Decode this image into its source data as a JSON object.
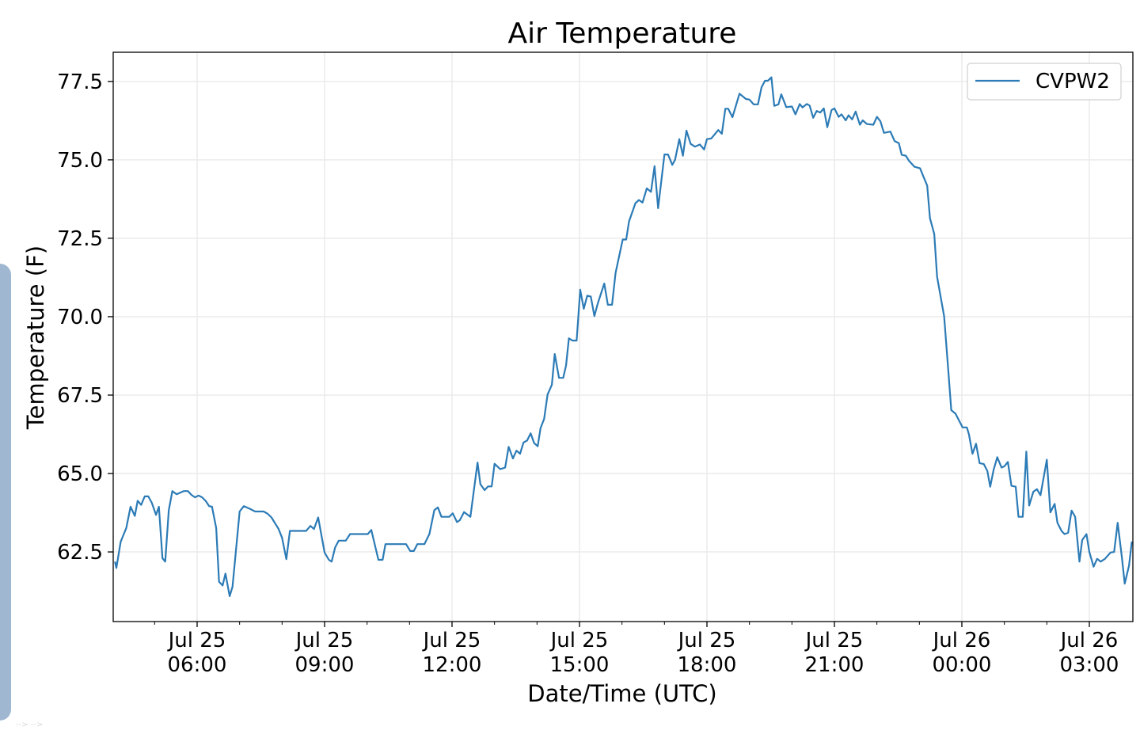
{
  "side_hint": "--> -->",
  "colors": {
    "series": "#2c7bb6",
    "grid": "#ebebeb",
    "panel": "#9fb7d1"
  },
  "chart_data": {
    "type": "line",
    "title": "Air Temperature",
    "xlabel": "Date/Time (UTC)",
    "ylabel": "Temperature (F)",
    "x_unit": "minutes after Jul 25 00:00 UTC",
    "xlim": [
      241.5,
      1681.5
    ],
    "ylim": [
      60.28,
      78.43
    ],
    "grid": true,
    "legend_position": "top-right",
    "x_ticks": [
      {
        "value": 360,
        "line1": "Jul 25",
        "line2": "06:00"
      },
      {
        "value": 540,
        "line1": "Jul 25",
        "line2": "09:00"
      },
      {
        "value": 720,
        "line1": "Jul 25",
        "line2": "12:00"
      },
      {
        "value": 900,
        "line1": "Jul 25",
        "line2": "15:00"
      },
      {
        "value": 1080,
        "line1": "Jul 25",
        "line2": "18:00"
      },
      {
        "value": 1260,
        "line1": "Jul 25",
        "line2": "21:00"
      },
      {
        "value": 1440,
        "line1": "Jul 26",
        "line2": "00:00"
      },
      {
        "value": 1620,
        "line1": "Jul 26",
        "line2": "03:00"
      }
    ],
    "x_minor_ticks": [
      300,
      420,
      480,
      600,
      660,
      780,
      840,
      960,
      1020,
      1140,
      1200,
      1320,
      1380,
      1500,
      1560
    ],
    "y_ticks": [
      {
        "value": 62.5,
        "label": "62.5"
      },
      {
        "value": 65.0,
        "label": "65.0"
      },
      {
        "value": 67.5,
        "label": "67.5"
      },
      {
        "value": 70.0,
        "label": "70.0"
      },
      {
        "value": 72.5,
        "label": "72.5"
      },
      {
        "value": 75.0,
        "label": "75.0"
      },
      {
        "value": 77.5,
        "label": "77.5"
      }
    ],
    "series": [
      {
        "name": "CVPW2",
        "x": [
          244,
          246,
          252,
          255,
          260,
          266,
          272,
          276,
          281,
          286,
          291,
          296,
          302,
          306,
          311,
          315,
          320,
          325,
          331,
          341,
          347,
          352,
          357,
          362,
          367,
          372,
          377,
          381,
          387,
          391,
          396,
          400,
          406,
          410,
          420,
          426,
          434,
          442,
          454,
          460,
          465,
          475,
          480,
          486,
          491,
          514,
          520,
          525,
          531,
          540,
          546,
          550,
          555,
          560,
          570,
          576,
          601,
          606,
          616,
          622,
          626,
          655,
          661,
          666,
          671,
          681,
          688,
          695,
          700,
          705,
          716,
          721,
          727,
          731,
          737,
          746,
          756,
          760,
          766,
          771,
          776,
          780,
          788,
          795,
          800,
          806,
          811,
          816,
          821,
          826,
          831,
          836,
          841,
          845,
          850,
          855,
          861,
          865,
          871,
          877,
          881,
          885,
          890,
          896,
          901,
          906,
          911,
          916,
          921,
          926,
          935,
          940,
          946,
          951,
          961,
          966,
          970,
          979,
          984,
          989,
          995,
          1001,
          1006,
          1011,
          1020,
          1025,
          1031,
          1035,
          1041,
          1046,
          1051,
          1057,
          1063,
          1070,
          1076,
          1080,
          1086,
          1096,
          1101,
          1106,
          1110,
          1116,
          1126,
          1135,
          1140,
          1146,
          1152,
          1157,
          1162,
          1166,
          1171,
          1175,
          1181,
          1185,
          1192,
          1200,
          1205,
          1211,
          1215,
          1221,
          1225,
          1230,
          1235,
          1240,
          1245,
          1250,
          1256,
          1260,
          1266,
          1270,
          1276,
          1280,
          1285,
          1290,
          1296,
          1300,
          1306,
          1315,
          1320,
          1325,
          1330,
          1339,
          1345,
          1351,
          1355,
          1361,
          1365,
          1373,
          1381,
          1386,
          1391,
          1395,
          1401,
          1405,
          1415,
          1420,
          1425,
          1431,
          1441,
          1447,
          1450,
          1455,
          1460,
          1465,
          1471,
          1476,
          1480,
          1485,
          1490,
          1496,
          1500,
          1505,
          1510,
          1516,
          1520,
          1526,
          1531,
          1535,
          1541,
          1546,
          1551,
          1560,
          1565,
          1571,
          1575,
          1581,
          1585,
          1590,
          1595,
          1600,
          1606,
          1610,
          1616,
          1620,
          1626,
          1631,
          1636,
          1642,
          1650,
          1655,
          1660,
          1666,
          1670,
          1676,
          1680
        ],
        "y": [
          62.19,
          61.99,
          62.82,
          62.99,
          63.26,
          63.94,
          63.65,
          64.13,
          64.0,
          64.27,
          64.27,
          64.07,
          63.68,
          63.94,
          62.3,
          62.19,
          63.83,
          64.44,
          64.34,
          64.44,
          64.44,
          64.32,
          64.24,
          64.3,
          64.24,
          64.13,
          63.96,
          63.94,
          63.26,
          61.55,
          61.43,
          61.81,
          61.09,
          61.39,
          63.79,
          63.96,
          63.88,
          63.79,
          63.79,
          63.71,
          63.6,
          63.23,
          62.95,
          62.27,
          63.17,
          63.17,
          63.33,
          63.23,
          63.6,
          62.48,
          62.25,
          62.19,
          62.65,
          62.86,
          62.86,
          63.07,
          63.07,
          63.2,
          62.25,
          62.25,
          62.75,
          62.75,
          62.53,
          62.53,
          62.75,
          62.75,
          63.07,
          63.83,
          63.92,
          63.62,
          63.62,
          63.73,
          63.45,
          63.51,
          63.77,
          63.62,
          65.35,
          64.66,
          64.47,
          64.59,
          64.59,
          65.31,
          65.14,
          65.19,
          65.85,
          65.48,
          65.73,
          65.63,
          65.99,
          66.05,
          66.28,
          65.97,
          65.87,
          66.45,
          66.74,
          67.52,
          67.83,
          68.81,
          68.05,
          68.05,
          68.44,
          69.31,
          69.24,
          69.24,
          70.86,
          70.25,
          70.67,
          70.64,
          70.02,
          70.43,
          71.06,
          70.38,
          70.38,
          71.4,
          72.46,
          72.46,
          73.04,
          73.62,
          73.72,
          73.64,
          74.09,
          73.98,
          74.8,
          73.46,
          75.17,
          75.17,
          74.84,
          75.0,
          75.66,
          75.13,
          75.93,
          75.51,
          75.42,
          75.49,
          75.33,
          75.66,
          75.68,
          75.95,
          75.83,
          76.63,
          76.63,
          76.36,
          77.11,
          76.94,
          76.92,
          76.77,
          76.77,
          77.31,
          77.52,
          77.52,
          77.63,
          76.72,
          76.77,
          77.09,
          76.68,
          76.7,
          76.45,
          76.78,
          76.67,
          76.78,
          76.73,
          76.34,
          76.56,
          76.51,
          76.64,
          76.04,
          76.59,
          76.64,
          76.37,
          76.45,
          76.26,
          76.42,
          76.29,
          76.54,
          76.12,
          76.26,
          76.14,
          76.12,
          76.37,
          76.23,
          75.86,
          75.9,
          75.6,
          75.53,
          75.16,
          75.13,
          74.98,
          74.78,
          74.73,
          74.45,
          74.18,
          73.14,
          72.64,
          71.27,
          70.01,
          68.53,
          67.02,
          66.91,
          66.47,
          66.47,
          66.25,
          65.63,
          65.95,
          65.33,
          65.3,
          65.08,
          64.58,
          65.13,
          65.52,
          65.19,
          65.23,
          65.37,
          64.61,
          64.58,
          63.62,
          63.62,
          65.7,
          63.98,
          64.42,
          64.5,
          64.31,
          65.44,
          63.76,
          64.03,
          63.43,
          63.16,
          63.07,
          63.11,
          63.82,
          63.62,
          62.19,
          62.88,
          63.07,
          62.5,
          62.03,
          62.28,
          62.19,
          62.28,
          62.48,
          62.5,
          63.43,
          62.33,
          61.49,
          62.06,
          62.83
        ]
      }
    ]
  }
}
